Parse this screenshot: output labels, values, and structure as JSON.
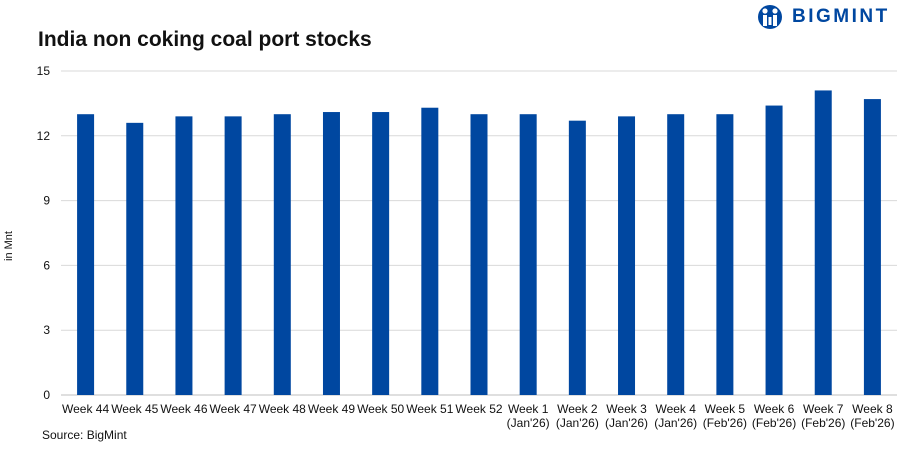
{
  "logo": {
    "text": "BIGMINT",
    "brand_color": "#0047a0"
  },
  "source": "Source: BigMint",
  "chart_data": {
    "type": "bar",
    "title": "India non coking coal port stocks",
    "ylabel": "in Mnt",
    "xlabel": "",
    "ylim": [
      0,
      15
    ],
    "yticks": [
      0,
      3,
      6,
      9,
      12,
      15
    ],
    "grid": true,
    "bar_color": "#0047a0",
    "categories": [
      [
        "Week 44"
      ],
      [
        "Week 45"
      ],
      [
        "Week 46"
      ],
      [
        "Week 47"
      ],
      [
        "Week 48"
      ],
      [
        "Week 49"
      ],
      [
        "Week 50"
      ],
      [
        "Week 51"
      ],
      [
        "Week 52"
      ],
      [
        "Week 1",
        "(Jan'26)"
      ],
      [
        "Week 2",
        "(Jan'26)"
      ],
      [
        "Week 3",
        "(Jan'26)"
      ],
      [
        "Week 4",
        "(Jan'26)"
      ],
      [
        "Week 5",
        "(Feb'26)"
      ],
      [
        "Week 6",
        "(Feb'26)"
      ],
      [
        "Week 7",
        "(Feb'26)"
      ],
      [
        "Week 8",
        "(Feb'26)"
      ]
    ],
    "values": [
      13.0,
      12.6,
      12.9,
      12.9,
      13.0,
      13.1,
      13.1,
      13.3,
      13.0,
      13.0,
      12.7,
      12.9,
      13.0,
      13.0,
      13.4,
      14.1,
      13.7
    ]
  }
}
